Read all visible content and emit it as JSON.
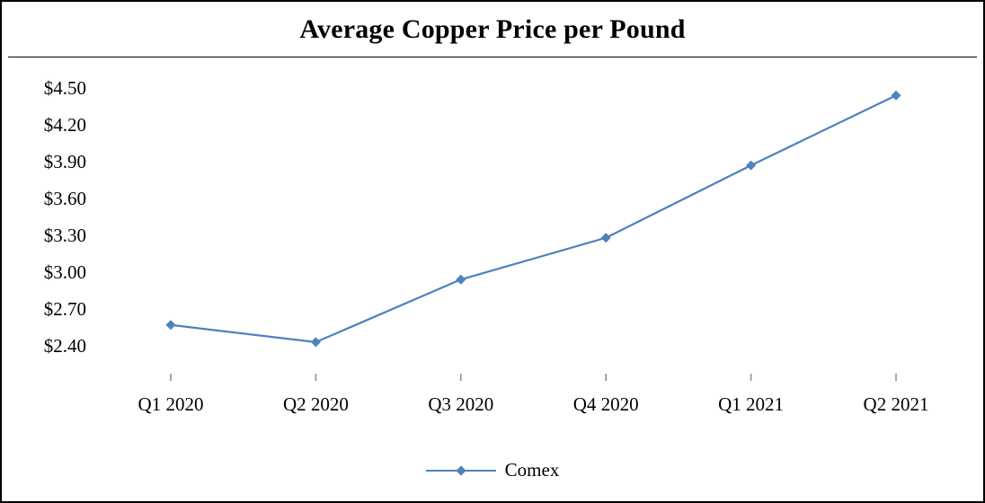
{
  "chart_data": {
    "type": "line",
    "title": "Average Copper Price per Pound",
    "categories": [
      "Q1 2020",
      "Q2 2020",
      "Q3 2020",
      "Q4 2020",
      "Q1 2021",
      "Q2 2021"
    ],
    "series": [
      {
        "name": "Comex",
        "values": [
          2.57,
          2.43,
          2.94,
          3.28,
          3.87,
          4.44
        ]
      }
    ],
    "xlabel": "",
    "ylabel": "",
    "ylim": [
      2.4,
      4.5
    ],
    "y_tick_values": [
      2.4,
      2.7,
      3.0,
      3.3,
      3.6,
      3.9,
      4.2,
      4.5
    ],
    "y_tick_labels": [
      "$2.40",
      "$2.70",
      "$3.00",
      "$3.30",
      "$3.60",
      "$3.90",
      "$4.20",
      "$4.50"
    ],
    "grid": false,
    "legend": {
      "position": "bottom",
      "entries": [
        "Comex"
      ]
    },
    "line_color": "#4f81bd",
    "marker": "diamond",
    "tick_mark_color": "#898989",
    "frame_border_color": "#000000"
  }
}
